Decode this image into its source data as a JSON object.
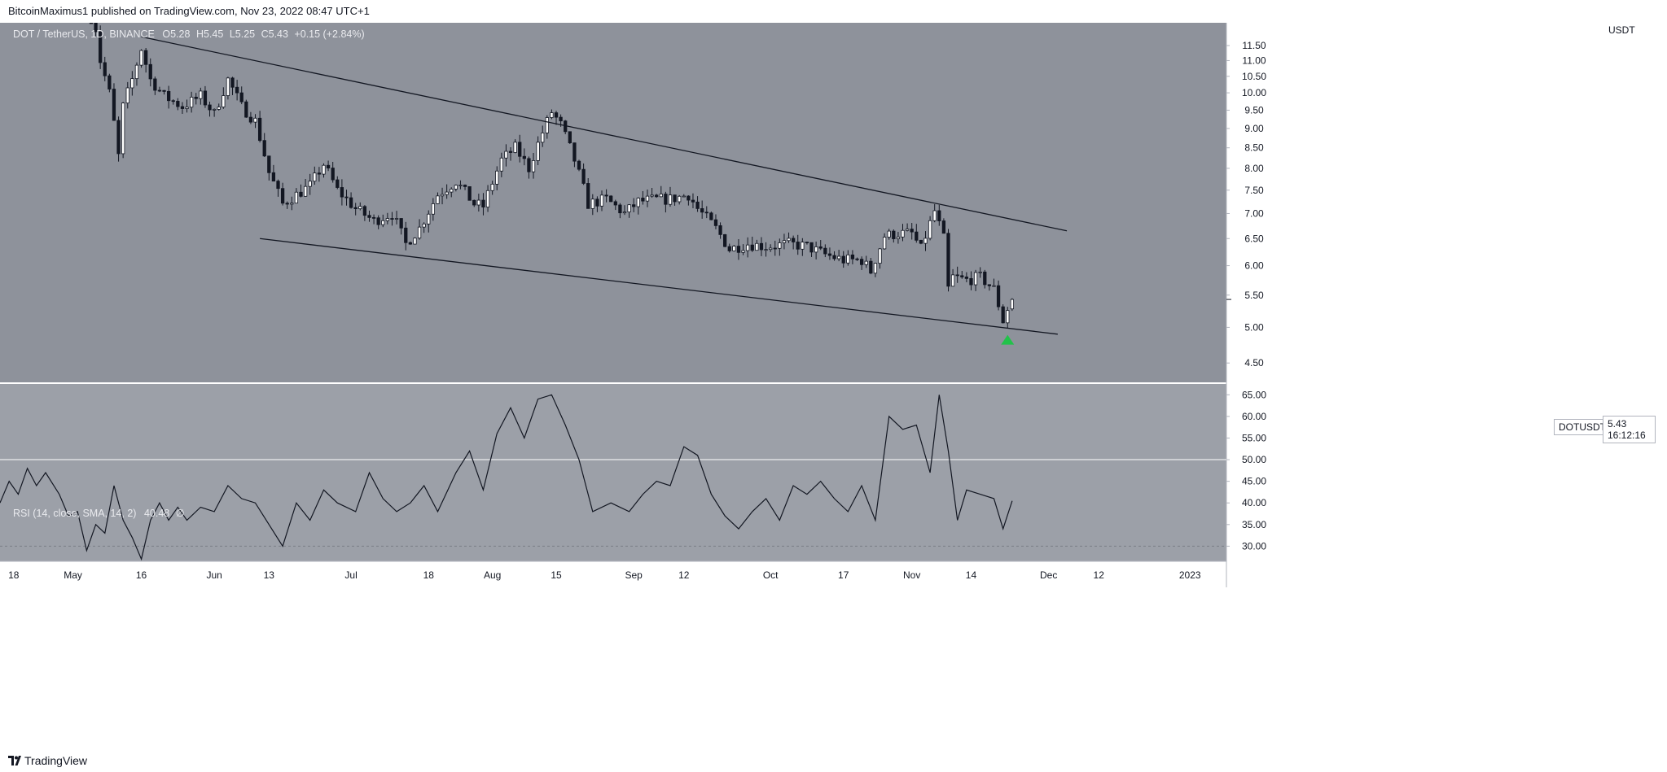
{
  "header": {
    "published_text": "BitcoinMaximus1 published on TradingView.com, Nov 23, 2022 08:47 UTC+1"
  },
  "legend": {
    "symbol": "DOT / TetherUS, 1D, BINANCE",
    "open_label": "O",
    "open_value": "5.28",
    "high_label": "H",
    "high_value": "5.45",
    "low_label": "L",
    "low_value": "5.25",
    "close_label": "C",
    "close_value": "5.43",
    "change": "+0.15 (+2.84%)"
  },
  "rsi_legend": {
    "label": "RSI (14, close, SMA, 14, 2)",
    "value": "40.48",
    "extra": "∅"
  },
  "price_axis": {
    "currency": "USDT",
    "symbol_tag": "DOTUSDT",
    "last_price": "5.43",
    "countdown": "16:12:16"
  },
  "footer": {
    "brand": "TradingView"
  },
  "colors": {
    "panel_background": "#8e929b",
    "up_candle": "#ffffff",
    "down_candle": "#131722",
    "trendline": "#131722",
    "rsi_line": "#131722",
    "signal_arrow": "#22c24a",
    "gridline_rsi_50": "#ffffff"
  },
  "chart_data": [
    {
      "type": "candlestick",
      "title": "DOT / TetherUS, 1D, BINANCE",
      "ylabel": "USDT",
      "y_scale": "log",
      "ylim": [
        4.25,
        12.3
      ],
      "y_ticks": [
        4.5,
        5.0,
        5.5,
        6.0,
        6.5,
        7.0,
        7.5,
        8.0,
        8.5,
        9.0,
        9.5,
        10.0,
        10.5,
        11.0,
        11.5
      ],
      "xlim": [
        "2022-04-15",
        "2023-01-09"
      ],
      "x_tick_labels": [
        {
          "date": "2022-04-18",
          "label": "18"
        },
        {
          "date": "2022-05-01",
          "label": "May"
        },
        {
          "date": "2022-05-16",
          "label": "16"
        },
        {
          "date": "2022-06-01",
          "label": "Jun"
        },
        {
          "date": "2022-06-13",
          "label": "13"
        },
        {
          "date": "2022-07-01",
          "label": "Jul"
        },
        {
          "date": "2022-07-18",
          "label": "18"
        },
        {
          "date": "2022-08-01",
          "label": "Aug"
        },
        {
          "date": "2022-08-15",
          "label": "15"
        },
        {
          "date": "2022-09-01",
          "label": "Sep"
        },
        {
          "date": "2022-09-12",
          "label": "12"
        },
        {
          "date": "2022-10-01",
          "label": "Oct"
        },
        {
          "date": "2022-10-17",
          "label": "17"
        },
        {
          "date": "2022-11-01",
          "label": "Nov"
        },
        {
          "date": "2022-11-14",
          "label": "14"
        },
        {
          "date": "2022-12-01",
          "label": "Dec"
        },
        {
          "date": "2022-12-12",
          "label": "12"
        },
        {
          "date": "2023-01-01",
          "label": "2023"
        }
      ],
      "close_anchors": [
        [
          "2022-05-05",
          13.2
        ],
        [
          "2022-05-07",
          11.0
        ],
        [
          "2022-05-09",
          10.0
        ],
        [
          "2022-05-11",
          8.3
        ],
        [
          "2022-05-12",
          9.6
        ],
        [
          "2022-05-14",
          10.4
        ],
        [
          "2022-05-16",
          11.4
        ],
        [
          "2022-05-18",
          10.4
        ],
        [
          "2022-05-21",
          9.9
        ],
        [
          "2022-05-25",
          9.6
        ],
        [
          "2022-05-29",
          9.9
        ],
        [
          "2022-06-01",
          9.4
        ],
        [
          "2022-06-04",
          10.4
        ],
        [
          "2022-06-07",
          9.6
        ],
        [
          "2022-06-10",
          9.2
        ],
        [
          "2022-06-13",
          7.9
        ],
        [
          "2022-06-16",
          7.2
        ],
        [
          "2022-06-19",
          7.4
        ],
        [
          "2022-06-22",
          7.6
        ],
        [
          "2022-06-25",
          8.1
        ],
        [
          "2022-06-28",
          7.5
        ],
        [
          "2022-07-02",
          7.1
        ],
        [
          "2022-07-06",
          6.85
        ],
        [
          "2022-07-10",
          7.0
        ],
        [
          "2022-07-13",
          6.4
        ],
        [
          "2022-07-16",
          6.7
        ],
        [
          "2022-07-20",
          7.4
        ],
        [
          "2022-07-24",
          7.7
        ],
        [
          "2022-07-28",
          7.2
        ],
        [
          "2022-07-30",
          7.15
        ],
        [
          "2022-08-03",
          8.2
        ],
        [
          "2022-08-06",
          8.5
        ],
        [
          "2022-08-09",
          8.0
        ],
        [
          "2022-08-12",
          8.9
        ],
        [
          "2022-08-14",
          9.45
        ],
        [
          "2022-08-16",
          9.1
        ],
        [
          "2022-08-19",
          8.2
        ],
        [
          "2022-08-22",
          7.2
        ],
        [
          "2022-08-26",
          7.3
        ],
        [
          "2022-08-30",
          7.0
        ],
        [
          "2022-09-02",
          7.25
        ],
        [
          "2022-09-06",
          7.3
        ],
        [
          "2022-09-09",
          7.3
        ],
        [
          "2022-09-13",
          7.4
        ],
        [
          "2022-09-15",
          7.1
        ],
        [
          "2022-09-19",
          6.7
        ],
        [
          "2022-09-22",
          6.3
        ],
        [
          "2022-09-26",
          6.4
        ],
        [
          "2022-09-30",
          6.35
        ],
        [
          "2022-10-05",
          6.4
        ],
        [
          "2022-10-09",
          6.35
        ],
        [
          "2022-10-13",
          6.2
        ],
        [
          "2022-10-17",
          6.1
        ],
        [
          "2022-10-21",
          6.1
        ],
        [
          "2022-10-23",
          5.9
        ],
        [
          "2022-10-26",
          6.55
        ],
        [
          "2022-10-29",
          6.6
        ],
        [
          "2022-11-01",
          6.6
        ],
        [
          "2022-11-03",
          6.3
        ],
        [
          "2022-11-06",
          7.05
        ],
        [
          "2022-11-08",
          6.5
        ],
        [
          "2022-11-09",
          5.6
        ],
        [
          "2022-11-10",
          5.8
        ],
        [
          "2022-11-13",
          5.75
        ],
        [
          "2022-11-16",
          5.8
        ],
        [
          "2022-11-19",
          5.6
        ],
        [
          "2022-11-21",
          5.1
        ],
        [
          "2022-11-22",
          5.28
        ],
        [
          "2022-11-23",
          5.43
        ]
      ],
      "last_candle": {
        "date": "2022-11-23",
        "open": 5.28,
        "high": 5.45,
        "low": 5.25,
        "close": 5.43
      },
      "trendlines": [
        {
          "name": "resistance",
          "from": [
            "2022-05-16",
            11.8
          ],
          "to": [
            "2022-12-05",
            6.65
          ]
        },
        {
          "name": "support",
          "from": [
            "2022-06-11",
            6.5
          ],
          "to": [
            "2022-12-03",
            4.9
          ]
        }
      ],
      "markers": [
        {
          "type": "arrow-up",
          "date": "2022-11-22",
          "value": 4.82,
          "color": "#22c24a"
        }
      ]
    },
    {
      "type": "line",
      "title": "RSI (14, close, SMA, 14, 2)",
      "ylim": [
        26.5,
        67.5
      ],
      "y_ticks": [
        30,
        35,
        40,
        45,
        50,
        55,
        60,
        65
      ],
      "levels": [
        30,
        50
      ],
      "last_value": 40.48,
      "series": [
        {
          "name": "RSI",
          "points": [
            [
              "2022-04-15",
              40
            ],
            [
              "2022-04-17",
              45
            ],
            [
              "2022-04-19",
              42
            ],
            [
              "2022-04-21",
              48
            ],
            [
              "2022-04-23",
              44
            ],
            [
              "2022-04-25",
              47
            ],
            [
              "2022-04-28",
              42
            ],
            [
              "2022-04-30",
              37
            ],
            [
              "2022-05-02",
              38
            ],
            [
              "2022-05-04",
              29
            ],
            [
              "2022-05-06",
              35
            ],
            [
              "2022-05-08",
              33
            ],
            [
              "2022-05-10",
              44
            ],
            [
              "2022-05-12",
              36
            ],
            [
              "2022-05-14",
              32
            ],
            [
              "2022-05-16",
              27
            ],
            [
              "2022-05-18",
              36
            ],
            [
              "2022-05-20",
              40
            ],
            [
              "2022-05-22",
              36
            ],
            [
              "2022-05-24",
              39
            ],
            [
              "2022-05-26",
              36
            ],
            [
              "2022-05-29",
              39
            ],
            [
              "2022-06-01",
              38
            ],
            [
              "2022-06-04",
              44
            ],
            [
              "2022-06-07",
              41
            ],
            [
              "2022-06-10",
              40
            ],
            [
              "2022-06-13",
              35
            ],
            [
              "2022-06-16",
              30
            ],
            [
              "2022-06-19",
              40
            ],
            [
              "2022-06-22",
              36
            ],
            [
              "2022-06-25",
              43
            ],
            [
              "2022-06-28",
              40
            ],
            [
              "2022-07-02",
              38
            ],
            [
              "2022-07-05",
              47
            ],
            [
              "2022-07-08",
              41
            ],
            [
              "2022-07-11",
              38
            ],
            [
              "2022-07-14",
              40
            ],
            [
              "2022-07-17",
              44
            ],
            [
              "2022-07-20",
              38
            ],
            [
              "2022-07-24",
              47
            ],
            [
              "2022-07-27",
              52
            ],
            [
              "2022-07-30",
              43
            ],
            [
              "2022-08-02",
              56
            ],
            [
              "2022-08-05",
              62
            ],
            [
              "2022-08-08",
              55
            ],
            [
              "2022-08-11",
              64
            ],
            [
              "2022-08-14",
              65
            ],
            [
              "2022-08-17",
              58
            ],
            [
              "2022-08-20",
              50
            ],
            [
              "2022-08-23",
              38
            ],
            [
              "2022-08-27",
              40
            ],
            [
              "2022-08-31",
              38
            ],
            [
              "2022-09-03",
              42
            ],
            [
              "2022-09-06",
              45
            ],
            [
              "2022-09-09",
              44
            ],
            [
              "2022-09-12",
              53
            ],
            [
              "2022-09-15",
              51
            ],
            [
              "2022-09-18",
              42
            ],
            [
              "2022-09-21",
              37
            ],
            [
              "2022-09-24",
              34
            ],
            [
              "2022-09-27",
              38
            ],
            [
              "2022-09-30",
              41
            ],
            [
              "2022-10-03",
              36
            ],
            [
              "2022-10-06",
              44
            ],
            [
              "2022-10-09",
              42
            ],
            [
              "2022-10-12",
              45
            ],
            [
              "2022-10-15",
              41
            ],
            [
              "2022-10-18",
              38
            ],
            [
              "2022-10-21",
              44
            ],
            [
              "2022-10-24",
              36
            ],
            [
              "2022-10-27",
              60
            ],
            [
              "2022-10-30",
              57
            ],
            [
              "2022-11-02",
              58
            ],
            [
              "2022-11-05",
              47
            ],
            [
              "2022-11-07",
              65
            ],
            [
              "2022-11-09",
              52
            ],
            [
              "2022-11-11",
              36
            ],
            [
              "2022-11-13",
              43
            ],
            [
              "2022-11-16",
              42
            ],
            [
              "2022-11-19",
              41
            ],
            [
              "2022-11-21",
              34
            ],
            [
              "2022-11-23",
              40.48
            ]
          ]
        }
      ]
    }
  ]
}
